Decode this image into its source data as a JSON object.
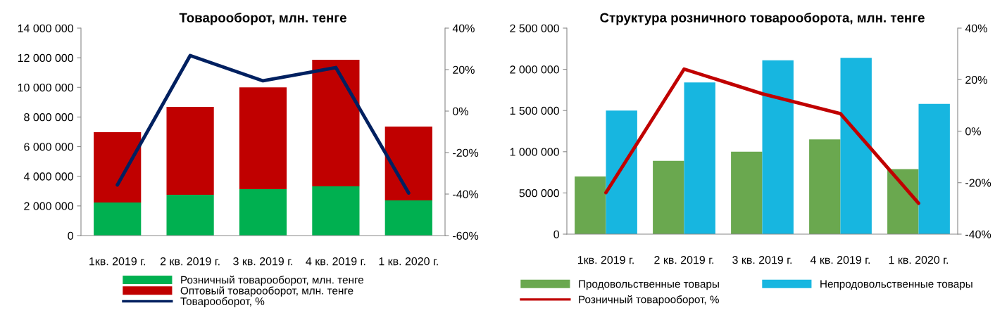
{
  "chart_data": [
    {
      "type": "bar",
      "title": "Товарооборот, млн. тенге",
      "stacked": true,
      "legend": "bottom",
      "grid": false,
      "marker": "none",
      "line_style": "solid",
      "categories": [
        "1кв. 2019 г.",
        "2 кв. 2019 г.",
        "3 кв. 2019 г.",
        "4 кв. 2019 г.",
        "1 кв. 2020 г."
      ],
      "series": [
        {
          "name": "Розничный товарооборот, млн. тенге",
          "color": "#00b050",
          "values": [
            2230000,
            2750000,
            3130000,
            3320000,
            2370000
          ]
        },
        {
          "name": "Оптовый товарооборот, млн. тенге",
          "color": "#c00000",
          "values": [
            4750000,
            5930000,
            6870000,
            8540000,
            4990000
          ]
        },
        {
          "name": "Товарооборот, %",
          "type": "line",
          "axis": "y2",
          "color": "#002060",
          "values": [
            -35.6,
            26.8,
            14.6,
            21,
            -39.5
          ]
        }
      ],
      "ylim": [
        0,
        14000000
      ],
      "yticks": [
        {
          "value": 0,
          "label": "0"
        },
        {
          "value": 2000000,
          "label": "2 000 000"
        },
        {
          "value": 4000000,
          "label": "4 000 000"
        },
        {
          "value": 6000000,
          "label": "6 000 000"
        },
        {
          "value": 8000000,
          "label": "8 000 000"
        },
        {
          "value": 10000000,
          "label": "10 000 000"
        },
        {
          "value": 12000000,
          "label": "12 000 000"
        },
        {
          "value": 14000000,
          "label": "14 000 000"
        }
      ],
      "y2lim": [
        -60,
        40
      ],
      "y2ticks": [
        {
          "value": -60,
          "label": "-60%"
        },
        {
          "value": -40,
          "label": "-40%"
        },
        {
          "value": -20,
          "label": "-20%"
        },
        {
          "value": 0,
          "label": "0%"
        },
        {
          "value": 20,
          "label": "20%"
        },
        {
          "value": 40,
          "label": "40%"
        }
      ]
    },
    {
      "type": "bar",
      "title": "Структура розничного товарооборота, млн. тенге",
      "stacked": false,
      "legend": "bottom",
      "grid": false,
      "marker": "none",
      "line_style": "solid",
      "categories": [
        "1кв. 2019 г.",
        "2 кв. 2019 г.",
        "3 кв. 2019 г.",
        "4 кв. 2019 г.",
        "1 кв. 2020 г."
      ],
      "series": [
        {
          "name": "Продовольственные товары",
          "color": "#6aa84f",
          "values": [
            700000,
            890000,
            1000000,
            1150000,
            790000
          ]
        },
        {
          "name": "Непродовольственные товары",
          "color": "#17b6e0",
          "values": [
            1500000,
            1840000,
            2110000,
            2140000,
            1580000
          ]
        },
        {
          "name": "Розничный товарооборот, %",
          "type": "line",
          "axis": "y2",
          "color": "#c00000",
          "values": [
            -23.9,
            24.1,
            14.5,
            6.8,
            -28
          ]
        }
      ],
      "ylim": [
        0,
        2500000
      ],
      "yticks": [
        {
          "value": 0,
          "label": "0"
        },
        {
          "value": 500000,
          "label": "500 000"
        },
        {
          "value": 1000000,
          "label": "1 000 000"
        },
        {
          "value": 1500000,
          "label": "1 500 000"
        },
        {
          "value": 2000000,
          "label": "2 000 000"
        },
        {
          "value": 2500000,
          "label": "2 500 000"
        }
      ],
      "y2lim": [
        -40,
        40
      ],
      "y2ticks": [
        {
          "value": -40,
          "label": "-40%"
        },
        {
          "value": -20,
          "label": "-20%"
        },
        {
          "value": 0,
          "label": "0%"
        },
        {
          "value": 20,
          "label": "20%"
        },
        {
          "value": 40,
          "label": "40%"
        }
      ]
    }
  ]
}
